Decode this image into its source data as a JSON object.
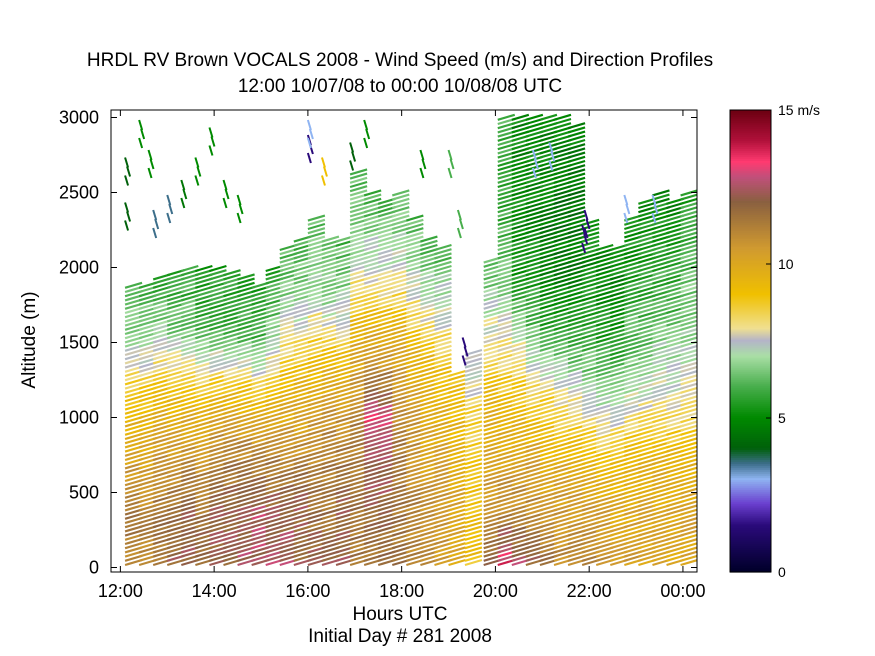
{
  "chart_data": {
    "type": "scatter",
    "title": "HRDL RV Brown VOCALS 2008 - Wind Speed (m/s) and Direction Profiles",
    "subtitle": "12:00 10/07/08 to 00:00 10/08/08  UTC",
    "xlabel": "Hours UTC",
    "xlabel_sub": "Initial Day # 281  2008",
    "ylabel": "Altitude (m)",
    "x_ticks": [
      "12:00",
      "14:00",
      "16:00",
      "18:00",
      "20:00",
      "22:00",
      "00:00"
    ],
    "x_tick_hours": [
      12,
      14,
      16,
      18,
      20,
      22,
      24
    ],
    "xlim": [
      11.8,
      24.3
    ],
    "y_ticks": [
      0,
      500,
      1000,
      1500,
      2000,
      2500,
      3000
    ],
    "ylim": [
      -30,
      3050
    ],
    "grid": false,
    "colorbar": {
      "ticks": [
        "0",
        "5",
        "10",
        "15 m/s"
      ],
      "tick_values": [
        0,
        5,
        10,
        15
      ],
      "range": [
        0,
        15
      ],
      "stops": [
        {
          "v": 0,
          "color": "#00002a"
        },
        {
          "v": 1.5,
          "color": "#2a0a7a"
        },
        {
          "v": 2.2,
          "color": "#6a3fcf"
        },
        {
          "v": 3.0,
          "color": "#8fb4f2"
        },
        {
          "v": 3.5,
          "color": "#3c6e8a"
        },
        {
          "v": 4.0,
          "color": "#00600a"
        },
        {
          "v": 5.0,
          "color": "#008a00"
        },
        {
          "v": 6.0,
          "color": "#48ae4c"
        },
        {
          "v": 7.0,
          "color": "#aadfa6"
        },
        {
          "v": 7.5,
          "color": "#b4b4c8"
        },
        {
          "v": 7.9,
          "color": "#f0e090"
        },
        {
          "v": 9.0,
          "color": "#f0c000"
        },
        {
          "v": 10.5,
          "color": "#d09a30"
        },
        {
          "v": 12.0,
          "color": "#8a6040"
        },
        {
          "v": 12.8,
          "color": "#c0507a"
        },
        {
          "v": 13.3,
          "color": "#ff3a70"
        },
        {
          "v": 14.0,
          "color": "#b0103a"
        },
        {
          "v": 15.0,
          "color": "#6a0010"
        }
      ]
    },
    "profiles": [
      {
        "t": 12.1,
        "top": 1880,
        "speeds": [
          11,
          11.5,
          10,
          9,
          7,
          6
        ]
      },
      {
        "t": 12.4,
        "top": 1900,
        "speeds": [
          11,
          11,
          10,
          9,
          7,
          6
        ]
      },
      {
        "t": 12.7,
        "top": 1950,
        "speeds": [
          11.5,
          11.5,
          10.5,
          9,
          7,
          5.5
        ]
      },
      {
        "t": 13.0,
        "top": 1980,
        "speeds": [
          12,
          11.5,
          10.5,
          9,
          6.5,
          5.5
        ]
      },
      {
        "t": 13.3,
        "top": 2000,
        "speeds": [
          12,
          12,
          10.5,
          9,
          6.5,
          5.5
        ]
      },
      {
        "t": 13.6,
        "top": 2000,
        "speeds": [
          12,
          11.5,
          10.5,
          8.5,
          6,
          5.5
        ]
      },
      {
        "t": 13.9,
        "top": 1990,
        "speeds": [
          12,
          12,
          11,
          9,
          6,
          5.5
        ]
      },
      {
        "t": 14.2,
        "top": 1980,
        "speeds": [
          12,
          12,
          11,
          9,
          6,
          5.5
        ]
      },
      {
        "t": 14.5,
        "top": 1960,
        "speeds": [
          12.5,
          12,
          11,
          9,
          6,
          5.5
        ]
      },
      {
        "t": 14.8,
        "top": 1880,
        "speeds": [
          12.5,
          12.5,
          11,
          9,
          6,
          5.5
        ]
      },
      {
        "t": 15.1,
        "top": 2000,
        "speeds": [
          12.5,
          12,
          11,
          9,
          6.5,
          5.5
        ]
      },
      {
        "t": 15.4,
        "top": 2150,
        "speeds": [
          12.5,
          12,
          10.5,
          9,
          7,
          6
        ]
      },
      {
        "t": 15.7,
        "top": 2200,
        "speeds": [
          12,
          12,
          10.5,
          9,
          7,
          6
        ]
      },
      {
        "t": 16.0,
        "top": 2350,
        "speeds": [
          12,
          11.5,
          10.5,
          9,
          7,
          6
        ]
      },
      {
        "t": 16.3,
        "top": 2200,
        "speeds": [
          12,
          11.5,
          11,
          9.5,
          7,
          6
        ]
      },
      {
        "t": 16.6,
        "top": 2200,
        "speeds": [
          12,
          12,
          11,
          9.5,
          7,
          6
        ]
      },
      {
        "t": 16.9,
        "top": 2650,
        "speeds": [
          11.5,
          11.5,
          11,
          9.5,
          7,
          6
        ]
      },
      {
        "t": 17.2,
        "top": 2500,
        "speeds": [
          11.5,
          12,
          13,
          10,
          7.5,
          6
        ]
      },
      {
        "t": 17.5,
        "top": 2450,
        "speeds": [
          11.5,
          12,
          13,
          10,
          7.5,
          6
        ]
      },
      {
        "t": 17.8,
        "top": 2500,
        "speeds": [
          11.5,
          11.5,
          11,
          10,
          7.5,
          6
        ]
      },
      {
        "t": 18.1,
        "top": 2350,
        "speeds": [
          11,
          11,
          10.5,
          9.5,
          7.5,
          6
        ]
      },
      {
        "t": 18.4,
        "top": 2200,
        "speeds": [
          11,
          10.5,
          10,
          9.5,
          7.5,
          6
        ]
      },
      {
        "t": 18.7,
        "top": 2150,
        "speeds": [
          10.5,
          10.5,
          10,
          9,
          7.5,
          6
        ]
      },
      {
        "t": 19.0,
        "top": 1300,
        "speeds": [
          10,
          10,
          9.5,
          9
        ]
      },
      {
        "t": 19.35,
        "top": 1450,
        "speeds": [
          9,
          9,
          8.5,
          7
        ]
      },
      {
        "t": 19.75,
        "top": 2050,
        "speeds": [
          12,
          10.5,
          10,
          9,
          7.5,
          6
        ]
      },
      {
        "t": 20.05,
        "top": 3000,
        "speeds": [
          13.5,
          11,
          10,
          9,
          8,
          6.5,
          6,
          5.5,
          6
        ]
      },
      {
        "t": 20.35,
        "top": 3000,
        "speeds": [
          12.5,
          11,
          10,
          9,
          7.5,
          5.5,
          5,
          5,
          5
        ]
      },
      {
        "t": 20.65,
        "top": 3000,
        "speeds": [
          12,
          11,
          10,
          8.5,
          6.5,
          5.5,
          5,
          5,
          5
        ]
      },
      {
        "t": 20.95,
        "top": 3000,
        "speeds": [
          11.5,
          10.5,
          9.5,
          8.5,
          6,
          5,
          4.5,
          5,
          5
        ]
      },
      {
        "t": 21.25,
        "top": 3000,
        "speeds": [
          11,
          10.5,
          9.5,
          8,
          6,
          5,
          4.5,
          4.5,
          5
        ]
      },
      {
        "t": 21.55,
        "top": 2950,
        "speeds": [
          11,
          10.5,
          9.5,
          8,
          6,
          5,
          4.5,
          4.5,
          5
        ]
      },
      {
        "t": 21.85,
        "top": 2300,
        "speeds": [
          11,
          10.5,
          9.5,
          8,
          6.5,
          5.5,
          5,
          5
        ]
      },
      {
        "t": 22.15,
        "top": 2150,
        "speeds": [
          10.5,
          10.5,
          9.5,
          8,
          6.5,
          5.5,
          5,
          5
        ]
      },
      {
        "t": 22.45,
        "top": 2150,
        "speeds": [
          10.5,
          10,
          9.5,
          8,
          6.5,
          5.5,
          5,
          5
        ]
      },
      {
        "t": 22.75,
        "top": 2350,
        "speeds": [
          10.5,
          10,
          9.5,
          8,
          6.5,
          6,
          5.5,
          5
        ]
      },
      {
        "t": 23.05,
        "top": 2450,
        "speeds": [
          10,
          10,
          9.5,
          8,
          6.5,
          6,
          5.5,
          5
        ]
      },
      {
        "t": 23.35,
        "top": 2500,
        "speeds": [
          10,
          10,
          9.5,
          8,
          7,
          6,
          5.5,
          5
        ]
      },
      {
        "t": 23.65,
        "top": 2450,
        "speeds": [
          10,
          10,
          9.5,
          8,
          7,
          6,
          5.5,
          5
        ]
      },
      {
        "t": 23.95,
        "top": 2500,
        "speeds": [
          10,
          10,
          9.5,
          8,
          7,
          6.5,
          6,
          5.5
        ]
      }
    ],
    "sparse_barbs": [
      {
        "t": 12.1,
        "alt": 2700,
        "speed": 4
      },
      {
        "t": 12.1,
        "alt": 2400,
        "speed": 4
      },
      {
        "t": 12.4,
        "alt": 2950,
        "speed": 5
      },
      {
        "t": 12.6,
        "alt": 2750,
        "speed": 5
      },
      {
        "t": 12.7,
        "alt": 2350,
        "speed": 3.5
      },
      {
        "t": 13.0,
        "alt": 2450,
        "speed": 3.5
      },
      {
        "t": 13.3,
        "alt": 2550,
        "speed": 4.5
      },
      {
        "t": 13.6,
        "alt": 2700,
        "speed": 5
      },
      {
        "t": 13.9,
        "alt": 2900,
        "speed": 5
      },
      {
        "t": 14.2,
        "alt": 2550,
        "speed": 5
      },
      {
        "t": 14.5,
        "alt": 2450,
        "speed": 5
      },
      {
        "t": 16.0,
        "alt": 2850,
        "speed": 1.5
      },
      {
        "t": 16.0,
        "alt": 2950,
        "speed": 3
      },
      {
        "t": 16.3,
        "alt": 2700,
        "speed": 9
      },
      {
        "t": 16.9,
        "alt": 2800,
        "speed": 4
      },
      {
        "t": 17.2,
        "alt": 2950,
        "speed": 5
      },
      {
        "t": 18.4,
        "alt": 2750,
        "speed": 5
      },
      {
        "t": 19.0,
        "alt": 2750,
        "speed": 6
      },
      {
        "t": 19.3,
        "alt": 1500,
        "speed": 1.5
      },
      {
        "t": 19.2,
        "alt": 2350,
        "speed": 6
      },
      {
        "t": 21.85,
        "alt": 2250,
        "speed": 1.5
      },
      {
        "t": 21.9,
        "alt": 2350,
        "speed": 1.5
      },
      {
        "t": 20.8,
        "alt": 2750,
        "speed": 3
      },
      {
        "t": 21.15,
        "alt": 2800,
        "speed": 3
      },
      {
        "t": 22.75,
        "alt": 2450,
        "speed": 3
      },
      {
        "t": 23.35,
        "alt": 2450,
        "speed": 3
      }
    ],
    "colorbar_legend": "wind speed color scale"
  }
}
